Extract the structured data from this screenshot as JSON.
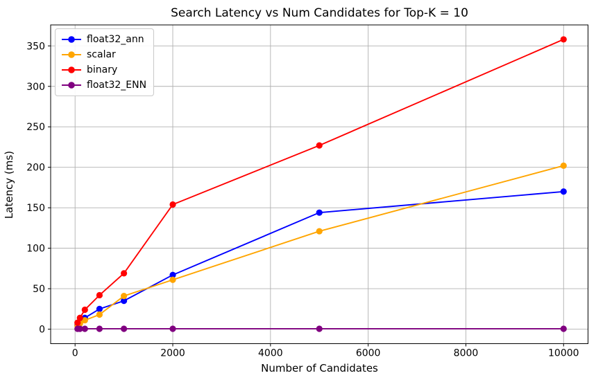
{
  "chart_data": {
    "type": "line",
    "title": "Search Latency vs Num Candidates for Top-K = 10",
    "xlabel": "Number of Candidates",
    "ylabel": "Latency (ms)",
    "x": [
      50,
      100,
      200,
      500,
      1000,
      2000,
      5000,
      10000
    ],
    "series": [
      {
        "name": "float32_ann",
        "color": "#0000ff",
        "values": [
          5,
          9,
          14,
          25,
          35,
          67,
          144,
          170
        ]
      },
      {
        "name": "scalar",
        "color": "#ffa500",
        "values": [
          4,
          7,
          11,
          18,
          41,
          61,
          121,
          202
        ]
      },
      {
        "name": "binary",
        "color": "#ff0000",
        "values": [
          8,
          14,
          24,
          42,
          69,
          154,
          227,
          358
        ]
      },
      {
        "name": "float32_ENN",
        "color": "#800080",
        "values": [
          0.5,
          0.5,
          0.5,
          0.5,
          0.5,
          0.5,
          0.5,
          0.5
        ]
      }
    ],
    "xticks": [
      0,
      2000,
      4000,
      6000,
      8000,
      10000
    ],
    "yticks": [
      0,
      50,
      100,
      150,
      200,
      250,
      300,
      350
    ],
    "xlim": [
      -500,
      10500
    ],
    "ylim": [
      -17.9,
      375.9
    ],
    "grid": true,
    "grid_color": "#b0b0b0",
    "axis_color": "#000000",
    "tick_label_color": "#000000",
    "background": "#ffffff",
    "legend_position": "upper left"
  }
}
